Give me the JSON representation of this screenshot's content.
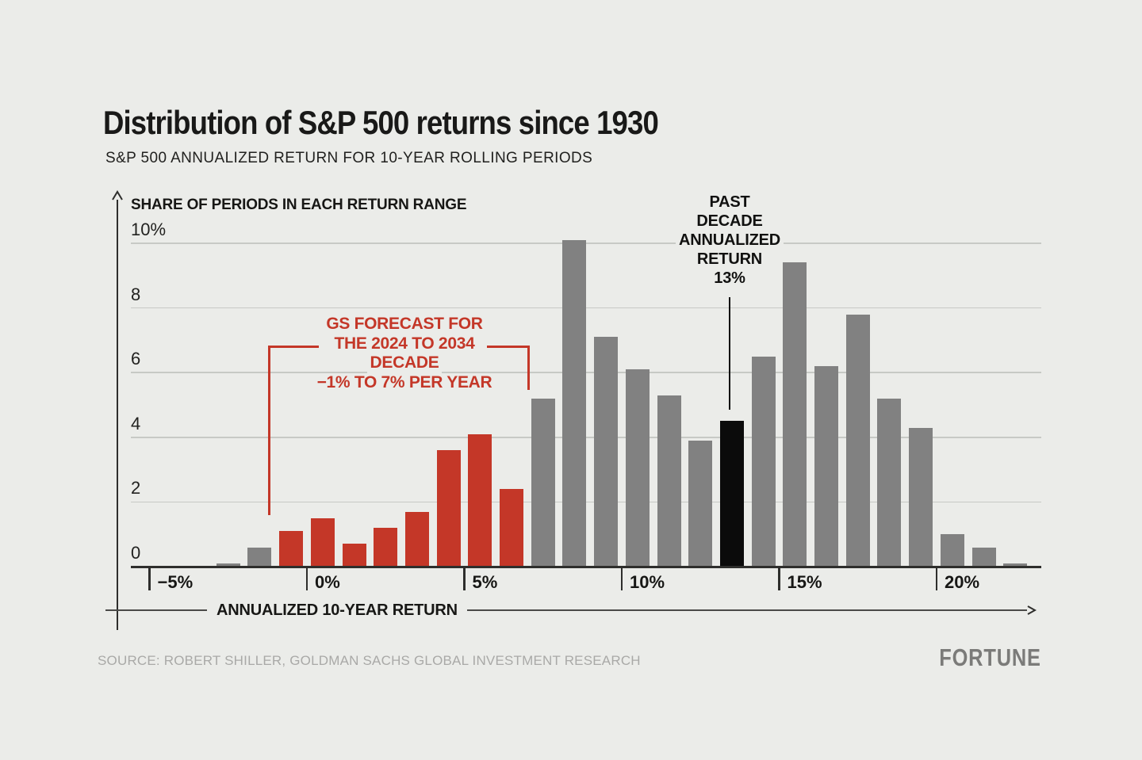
{
  "header": {
    "title": "Distribution of S&P 500 returns since 1930",
    "subtitle": "S&P 500 ANNUALIZED RETURN FOR 10-YEAR ROLLING PERIODS"
  },
  "chart_data": {
    "type": "bar",
    "title": "Distribution of S&P 500 returns since 1930",
    "subtitle": "S&P 500 ANNUALIZED RETURN FOR 10-YEAR ROLLING PERIODS",
    "xlabel": "ANNUALIZED 10-YEAR RETURN",
    "ylabel": "SHARE OF PERIODS IN EACH RETURN RANGE",
    "x_unit": "annualized 10-year return, 1-percentage-point bins (bin centers, %)",
    "y_unit": "share of periods (%)",
    "xlim": [
      -6.5,
      23.5
    ],
    "ylim": [
      0,
      10.5
    ],
    "grid": "horizontal",
    "bin_centers": [
      -2.5,
      -1.5,
      -0.5,
      0.5,
      1.5,
      2.5,
      3.5,
      4.5,
      5.5,
      6.5,
      7.5,
      8.5,
      9.5,
      10.5,
      11.5,
      12.5,
      13.5,
      14.5,
      15.5,
      16.5,
      17.5,
      18.5,
      19.5,
      20.5,
      21.5,
      22.5
    ],
    "values": [
      0.1,
      0.6,
      1.1,
      1.5,
      0.7,
      1.2,
      1.7,
      3.6,
      4.1,
      2.4,
      5.2,
      10.1,
      7.1,
      6.1,
      5.3,
      3.9,
      4.5,
      6.5,
      9.4,
      6.2,
      7.8,
      5.2,
      4.3,
      1.0,
      0.6,
      0.1
    ],
    "bar_colors": [
      "gray",
      "gray",
      "red",
      "red",
      "red",
      "red",
      "red",
      "red",
      "red",
      "red",
      "gray",
      "gray",
      "gray",
      "gray",
      "gray",
      "gray",
      "black",
      "gray",
      "gray",
      "gray",
      "gray",
      "gray",
      "gray",
      "gray",
      "gray",
      "gray"
    ],
    "x_ticks": [
      {
        "value": -5,
        "label": "−5%"
      },
      {
        "value": 0,
        "label": "0%"
      },
      {
        "value": 5,
        "label": "5%"
      },
      {
        "value": 10,
        "label": "10%"
      },
      {
        "value": 15,
        "label": "15%"
      },
      {
        "value": 20,
        "label": "20%"
      }
    ],
    "y_ticks": [
      {
        "value": 10,
        "label": "10%"
      },
      {
        "value": 8,
        "label": "8"
      },
      {
        "value": 6,
        "label": "6"
      },
      {
        "value": 4,
        "label": "4"
      },
      {
        "value": 2,
        "label": "2"
      },
      {
        "value": 0,
        "label": "0"
      }
    ],
    "annotations": {
      "forecast": {
        "lines": [
          "GS FORECAST FOR",
          "THE 2024 TO 2034",
          "DECADE",
          "−1% TO 7% PER YEAR"
        ],
        "range_pct": [
          -1,
          7
        ],
        "color": "red"
      },
      "past_decade": {
        "lines": [
          "PAST",
          "DECADE",
          "ANNUALIZED",
          "RETURN",
          "13%"
        ],
        "value_pct": 13,
        "points_to_bin_center": 13.5,
        "color": "black"
      }
    }
  },
  "colors": {
    "background": "#ebece9",
    "gray": "#818181",
    "red": "#c43728",
    "black": "#0b0b0b",
    "gridline": "#c7c9c5",
    "axis": "#2e2e2c",
    "text": "#171715",
    "source_text": "#a9a9a7",
    "logo": "#7b7b79"
  },
  "footer": {
    "source": "SOURCE: ROBERT SHILLER, GOLDMAN SACHS GLOBAL INVESTMENT RESEARCH",
    "logo": "FORTUNE"
  }
}
